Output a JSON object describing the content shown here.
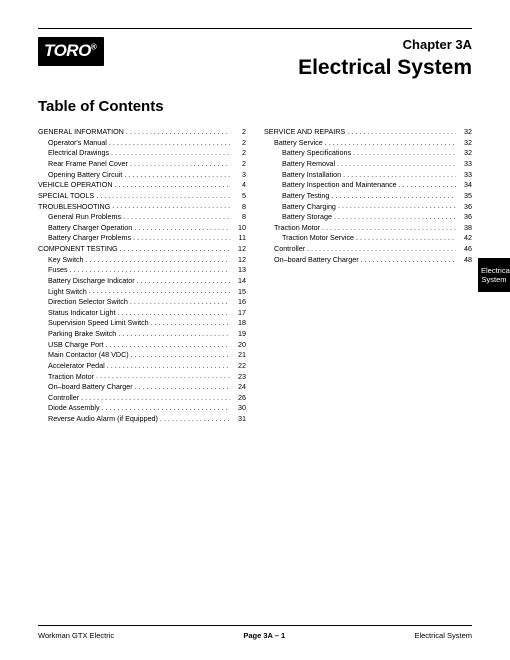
{
  "logo": {
    "text": "TORO",
    "sub": "®"
  },
  "chapter": {
    "label": "Chapter 3A",
    "title": "Electrical System"
  },
  "toc_title": "Table of Contents",
  "side_tab": {
    "line1": "Electrical",
    "line2": "System"
  },
  "footer": {
    "left": "Workman GTX Electric",
    "mid": "Page 3A – 1",
    "right": "Electrical System"
  },
  "col1": [
    {
      "t": "s",
      "label": "GENERAL INFORMATION",
      "pg": "2"
    },
    {
      "t": "sub",
      "label": "Operator's Manual",
      "pg": "2"
    },
    {
      "t": "sub",
      "label": "Electrical Drawings",
      "pg": "2"
    },
    {
      "t": "sub",
      "label": "Rear Frame Panel Cover",
      "pg": "2"
    },
    {
      "t": "sub",
      "label": "Opening Battery Circuit",
      "pg": "3"
    },
    {
      "t": "s",
      "label": "VEHICLE OPERATION",
      "pg": "4"
    },
    {
      "t": "s",
      "label": "SPECIAL TOOLS",
      "pg": "5"
    },
    {
      "t": "s",
      "label": "TROUBLESHOOTING",
      "pg": "8"
    },
    {
      "t": "sub",
      "label": "General Run Problems",
      "pg": "8"
    },
    {
      "t": "sub",
      "label": "Battery Charger Operation",
      "pg": "10"
    },
    {
      "t": "sub",
      "label": "Battery Charger Problems",
      "pg": "11"
    },
    {
      "t": "s",
      "label": "COMPONENT TESTING",
      "pg": "12"
    },
    {
      "t": "sub",
      "label": "Key Switch",
      "pg": "12"
    },
    {
      "t": "sub",
      "label": "Fuses",
      "pg": "13"
    },
    {
      "t": "sub",
      "label": "Battery Discharge Indicator",
      "pg": "14"
    },
    {
      "t": "sub",
      "label": "Light Switch",
      "pg": "15"
    },
    {
      "t": "sub",
      "label": "Direction Selector Switch",
      "pg": "16"
    },
    {
      "t": "sub",
      "label": "Status Indicator Light",
      "pg": "17"
    },
    {
      "t": "sub",
      "label": "Supervision Speed Limit Switch",
      "pg": "18"
    },
    {
      "t": "sub",
      "label": "Parking Brake Switch",
      "pg": "19"
    },
    {
      "t": "sub",
      "label": "USB Charge Port",
      "pg": "20"
    },
    {
      "t": "sub",
      "label": "Main Contactor (48 VDC)",
      "pg": "21"
    },
    {
      "t": "sub",
      "label": "Accelerator Pedal",
      "pg": "22"
    },
    {
      "t": "sub",
      "label": "Traction Motor",
      "pg": "23"
    },
    {
      "t": "sub",
      "label": "On–board Battery Charger",
      "pg": "24"
    },
    {
      "t": "sub",
      "label": "Controller",
      "pg": "26"
    },
    {
      "t": "sub",
      "label": "Diode Assembly",
      "pg": "30"
    },
    {
      "t": "sub",
      "label": "Reverse Audio Alarm (if Equipped)",
      "pg": "31"
    }
  ],
  "col2": [
    {
      "t": "s",
      "label": "SERVICE AND REPAIRS",
      "pg": "32"
    },
    {
      "t": "sub",
      "label": "Battery Service",
      "pg": "32"
    },
    {
      "t": "sub2",
      "label": "Battery Specifications",
      "pg": "32"
    },
    {
      "t": "sub2",
      "label": "Battery Removal",
      "pg": "33"
    },
    {
      "t": "sub2",
      "label": "Battery Installation",
      "pg": "33"
    },
    {
      "t": "sub2",
      "label": "Battery Inspection and Maintenance",
      "pg": "34"
    },
    {
      "t": "sub2",
      "label": "Battery Testing",
      "pg": "35"
    },
    {
      "t": "sub2",
      "label": "Battery Charging",
      "pg": "36"
    },
    {
      "t": "sub2",
      "label": "Battery Storage",
      "pg": "36"
    },
    {
      "t": "sub",
      "label": "Traction Motor",
      "pg": "38"
    },
    {
      "t": "sub2",
      "label": "Traction Motor Service",
      "pg": "42"
    },
    {
      "t": "sub",
      "label": "Controller",
      "pg": "46"
    },
    {
      "t": "sub",
      "label": "On–board Battery Charger",
      "pg": "48"
    }
  ]
}
